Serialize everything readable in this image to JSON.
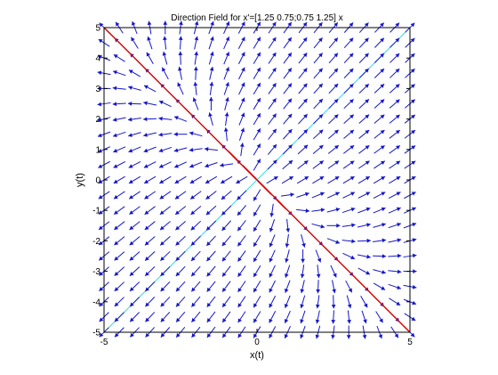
{
  "chart_data": {
    "type": "vector-field",
    "title": "Direction Field for x'=[1.25 0.75;0.75 1.25] x",
    "xlabel": "x(t)",
    "ylabel": "y(t)",
    "xlim": [
      -5,
      5
    ],
    "ylim": [
      -5,
      5
    ],
    "x_ticks": [
      "-5",
      "0",
      "5"
    ],
    "y_ticks": [
      "5",
      "4",
      "3",
      "2",
      "1",
      "0",
      "-1",
      "-2",
      "-3",
      "-4",
      "-5"
    ],
    "matrix": [
      [
        1.25,
        0.75
      ],
      [
        0.75,
        1.25
      ]
    ],
    "eigen_lines": [
      {
        "direction": [
          1,
          1
        ]
      },
      {
        "direction": [
          1,
          -1
        ]
      }
    ],
    "field_grid_spacing": 0.5,
    "trajectory_starts": [
      [
        -0.06,
        0.06
      ],
      [
        -0.2,
        0.2
      ],
      [
        -0.6,
        0.6
      ],
      [
        -1.2,
        1.2
      ],
      [
        -1.8,
        1.8
      ],
      [
        -2.6,
        2.6
      ],
      [
        -3.4,
        3.4
      ],
      [
        -4.2,
        4.2
      ],
      [
        0.06,
        -0.06
      ],
      [
        0.2,
        -0.2
      ],
      [
        0.6,
        -0.6
      ],
      [
        1.2,
        -1.2
      ],
      [
        1.8,
        -1.8
      ],
      [
        2.6,
        -2.6
      ],
      [
        3.4,
        -3.4
      ],
      [
        4.2,
        -4.2
      ]
    ],
    "colors": {
      "arrows": "#1515c8",
      "trajectories": "#dd0000",
      "eigen_lines": "#33d6ee",
      "axes": "#000000"
    }
  }
}
